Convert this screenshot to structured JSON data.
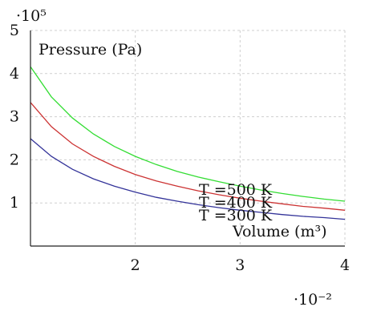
{
  "chart_data": {
    "type": "line",
    "x_scale_label": "·10⁻²",
    "y_scale_label": "·10⁵",
    "xlabel": "Volume (m³)",
    "ylabel": "Pressure (Pa)",
    "xlim": [
      1,
      4
    ],
    "ylim": [
      0,
      5
    ],
    "x_ticks": [
      {
        "value": 2,
        "label": "2"
      },
      {
        "value": 3,
        "label": "3"
      },
      {
        "value": 4,
        "label": "4"
      }
    ],
    "y_ticks": [
      {
        "value": 1,
        "label": "1"
      },
      {
        "value": 2,
        "label": "2"
      },
      {
        "value": 3,
        "label": "3"
      },
      {
        "value": 4,
        "label": "4"
      },
      {
        "value": 5,
        "label": "5"
      }
    ],
    "grid": true,
    "x": [
      1.0,
      1.2,
      1.4,
      1.6,
      1.8,
      2.0,
      2.2,
      2.4,
      2.6,
      2.8,
      3.0,
      3.2,
      3.4,
      3.6,
      3.8,
      4.0
    ],
    "series": [
      {
        "name": "T =500 K",
        "color": "#33dd33",
        "values": [
          4.16,
          3.46,
          2.97,
          2.6,
          2.31,
          2.08,
          1.89,
          1.73,
          1.6,
          1.49,
          1.39,
          1.3,
          1.22,
          1.15,
          1.09,
          1.04
        ]
      },
      {
        "name": "T =400 K",
        "color": "#cc3333",
        "values": [
          3.33,
          2.77,
          2.37,
          2.08,
          1.85,
          1.66,
          1.51,
          1.39,
          1.28,
          1.19,
          1.11,
          1.04,
          0.98,
          0.92,
          0.88,
          0.83
        ]
      },
      {
        "name": "T =300 K",
        "color": "#333399",
        "values": [
          2.49,
          2.08,
          1.78,
          1.56,
          1.39,
          1.25,
          1.13,
          1.04,
          0.96,
          0.89,
          0.83,
          0.78,
          0.73,
          0.69,
          0.66,
          0.62
        ]
      }
    ]
  }
}
